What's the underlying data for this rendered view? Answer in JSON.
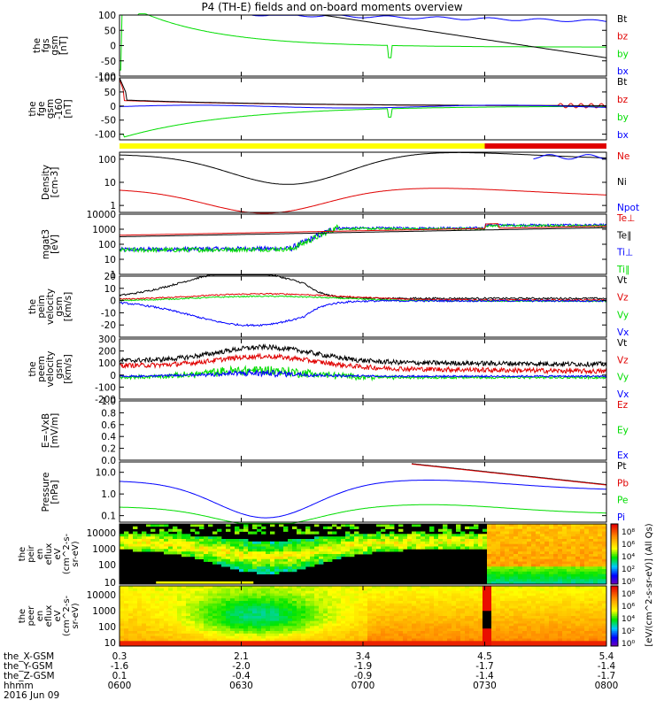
{
  "title": "P4 (TH-E) fields and on-board moments overview",
  "colors": {
    "black": "#000000",
    "red": "#e00000",
    "green": "#00dd00",
    "blue": "#0000ff",
    "yellow": "#ffff00"
  },
  "chart_data": [
    {
      "type": "line",
      "id": "fgs",
      "ylabel": [
        "the",
        "fgs",
        "gsm",
        "[nT]"
      ],
      "ylim": [
        -100,
        100
      ],
      "yticks": [
        "100",
        "50",
        "0",
        "-50",
        "-100"
      ],
      "legend": [
        {
          "name": "Bt",
          "color": "#000000"
        },
        {
          "name": "bz",
          "color": "#e00000"
        },
        {
          "name": "by",
          "color": "#00dd00"
        },
        {
          "name": "bx",
          "color": "#0000ff"
        }
      ]
    },
    {
      "type": "line",
      "id": "fge",
      "ylabel": [
        "the",
        "fge",
        "gsm",
        "-160",
        "[nT]"
      ],
      "ylim": [
        -120,
        100
      ],
      "yticks": [
        "100",
        "50",
        "0",
        "-50",
        "-100"
      ],
      "legend": [
        {
          "name": "Bt",
          "color": "#000000"
        },
        {
          "name": "bz",
          "color": "#e00000"
        },
        {
          "name": "by",
          "color": "#00dd00"
        },
        {
          "name": "bx",
          "color": "#0000ff"
        }
      ]
    },
    {
      "type": "line",
      "id": "density",
      "log": true,
      "ylabel": [
        "Density",
        "[cm-3]"
      ],
      "ylim": [
        0.5,
        200
      ],
      "yticks": [
        "100",
        "10",
        "1"
      ],
      "legend": [
        {
          "name": "Ne",
          "color": "#e00000"
        },
        {
          "name": "Ni",
          "color": "#000000"
        },
        {
          "name": "Npot",
          "color": "#0000ff"
        }
      ]
    },
    {
      "type": "line",
      "id": "temp",
      "log": true,
      "ylabel": [
        "mgat3",
        "[eV]"
      ],
      "ylim": [
        1,
        10000
      ],
      "yticks": [
        "10000",
        "1000",
        "100",
        "10",
        "1"
      ],
      "legend": [
        {
          "name": "Te⊥",
          "color": "#e00000"
        },
        {
          "name": "Te∥",
          "color": "#000000"
        },
        {
          "name": "Ti⊥",
          "color": "#0000ff"
        },
        {
          "name": "Ti∥",
          "color": "#00dd00"
        }
      ]
    },
    {
      "type": "line",
      "id": "peim",
      "ylabel": [
        "the",
        "peim",
        "velocity",
        "gsm",
        "[km/s]"
      ],
      "ylim": [
        -30,
        20
      ],
      "yticks": [
        "20",
        "10",
        "0",
        "-10",
        "-20"
      ],
      "legend": [
        {
          "name": "Vt",
          "color": "#000000"
        },
        {
          "name": "Vz",
          "color": "#e00000"
        },
        {
          "name": "Vy",
          "color": "#00dd00"
        },
        {
          "name": "Vx",
          "color": "#0000ff"
        }
      ]
    },
    {
      "type": "line",
      "id": "peem",
      "ylabel": [
        "the",
        "peem",
        "velocity",
        "gsm",
        "[km/s]"
      ],
      "ylim": [
        -200,
        300
      ],
      "yticks": [
        "300",
        "200",
        "100",
        "0",
        "-100",
        "-200"
      ],
      "legend": [
        {
          "name": "Vt",
          "color": "#000000"
        },
        {
          "name": "Vz",
          "color": "#e00000"
        },
        {
          "name": "Vy",
          "color": "#00dd00"
        },
        {
          "name": "Vx",
          "color": "#0000ff"
        }
      ]
    },
    {
      "type": "line",
      "id": "efield",
      "ylabel": [
        "E=-VxB",
        "[mV/m]"
      ],
      "ylim": [
        0,
        1
      ],
      "yticks": [
        "1.0",
        "0.8",
        "0.6",
        "0.4",
        "0.2",
        "0.0"
      ],
      "legend": [
        {
          "name": "Ez",
          "color": "#e00000"
        },
        {
          "name": "Ey",
          "color": "#00dd00"
        },
        {
          "name": "Ex",
          "color": "#0000ff"
        }
      ]
    },
    {
      "type": "line",
      "id": "pressure",
      "log": true,
      "ylabel": [
        "Pressure",
        "[nPa]"
      ],
      "ylim": [
        0.05,
        30
      ],
      "yticks": [
        "10.0",
        "1.0",
        "0.1"
      ],
      "legend": [
        {
          "name": "Pt",
          "color": "#000000"
        },
        {
          "name": "Pb",
          "color": "#e00000"
        },
        {
          "name": "Pe",
          "color": "#00dd00"
        },
        {
          "name": "Pi",
          "color": "#0000ff"
        }
      ]
    },
    {
      "type": "heatmap",
      "id": "peir",
      "ylabel": [
        "the",
        "peir",
        "en",
        "eflux",
        "eV",
        "(cm^2-s-",
        "sr-eV)"
      ],
      "yticks": [
        "10000",
        "1000",
        "100",
        "10"
      ]
    },
    {
      "type": "heatmap",
      "id": "peer",
      "ylabel": [
        "the",
        "peer",
        "en",
        "eflux",
        "eV",
        "(cm^2-s-",
        "sr-eV)"
      ],
      "yticks": [
        "10000",
        "1000",
        "100",
        "10"
      ]
    }
  ],
  "colorbar": {
    "label": "[eV/(cm^2-s-sr-eV)] (All Qs)",
    "ticks": [
      "10⁸",
      "10⁶",
      "10⁴",
      "10²",
      "10⁰"
    ]
  },
  "time_axis": {
    "rows": [
      {
        "label": "the_X-GSM",
        "values": [
          "0.3",
          "2.1",
          "3.4",
          "4.5",
          "5.4"
        ]
      },
      {
        "label": "the_Y-GSM",
        "values": [
          "-1.6",
          "-2.0",
          "-1.9",
          "-1.7",
          "-1.4"
        ]
      },
      {
        "label": "the_Z-GSM",
        "values": [
          "0.1",
          "-0.4",
          "-0.9",
          "-1.4",
          "-1.7"
        ]
      },
      {
        "label": "hhmm",
        "values": [
          "0600",
          "0630",
          "0700",
          "0730",
          "0800"
        ]
      }
    ],
    "date": "2016 Jun 09"
  }
}
